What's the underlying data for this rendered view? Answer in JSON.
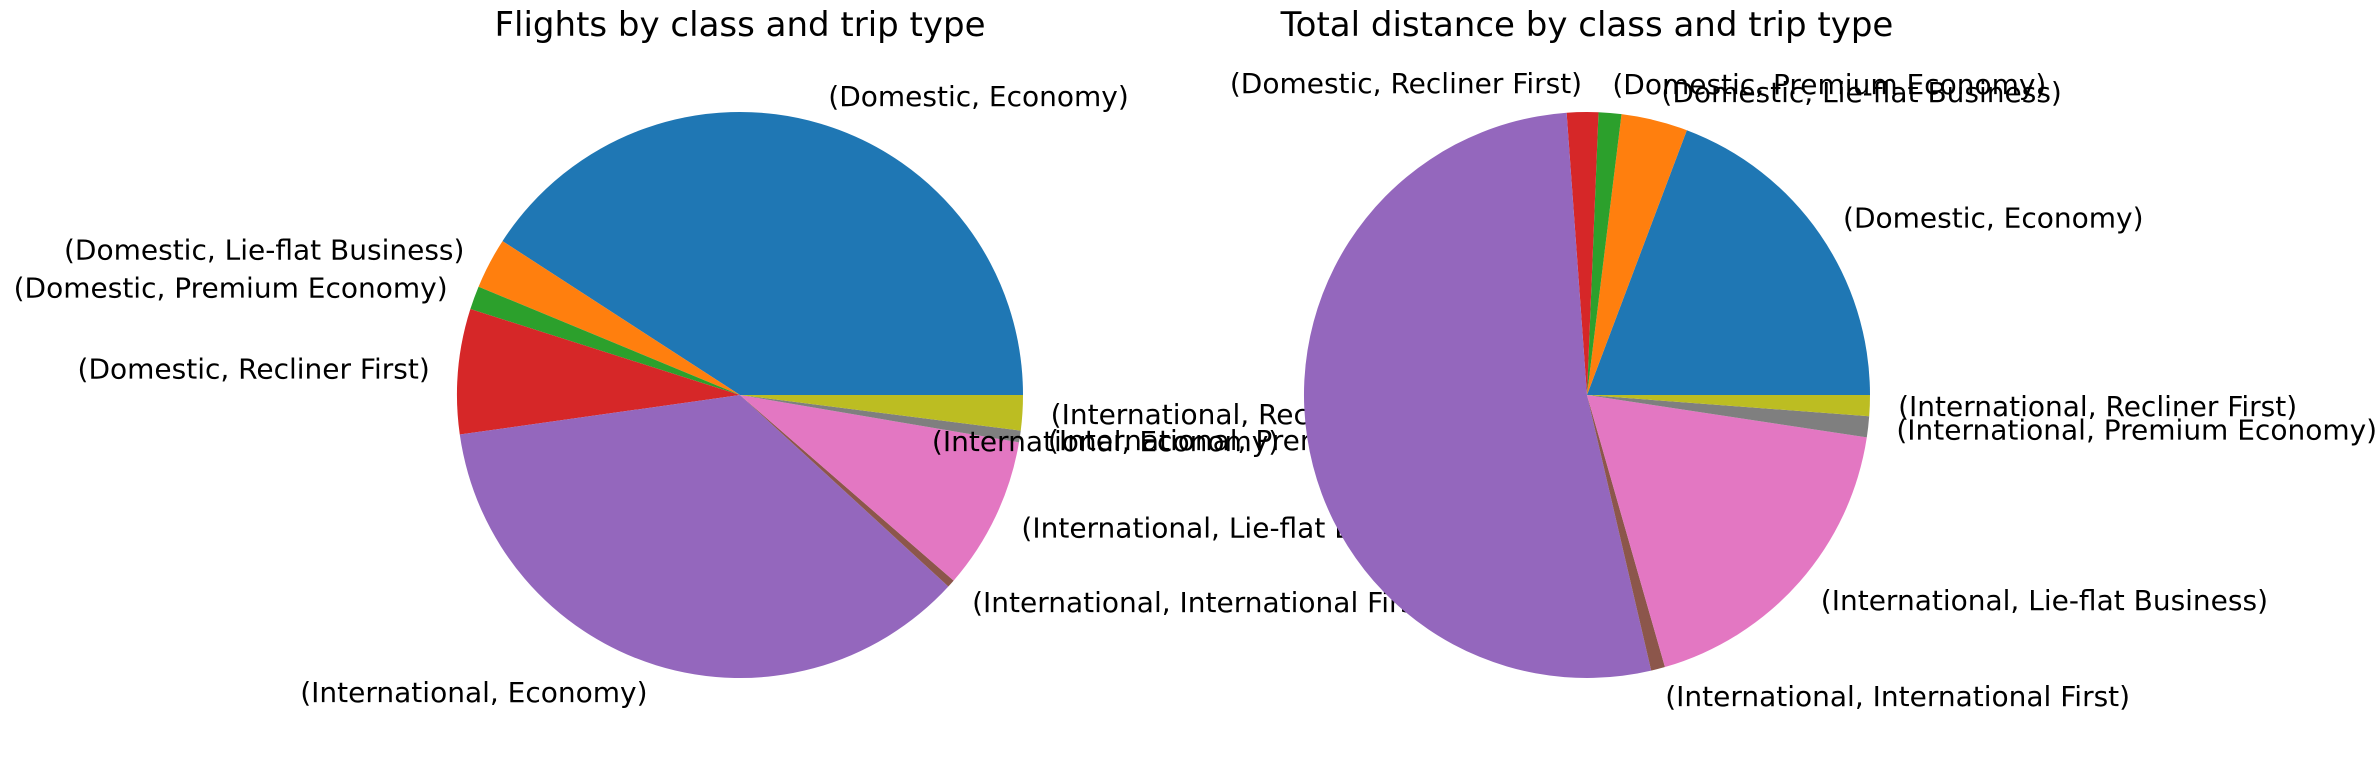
{
  "chart_data": [
    {
      "type": "pie",
      "title": "Flights by class and trip type",
      "slices": [
        {
          "label": "(Domestic, Economy)",
          "value": 183
        },
        {
          "label": "(Domestic, Lie-flat Business)",
          "value": 13
        },
        {
          "label": "(Domestic, Premium Economy)",
          "value": 6
        },
        {
          "label": "(Domestic, Recliner First)",
          "value": 32
        },
        {
          "label": "(International, Economy)",
          "value": 161
        },
        {
          "label": "(International, International First)",
          "value": 2
        },
        {
          "label": "(International, Lie-flat Business)",
          "value": 39
        },
        {
          "label": "(International, Premium Economy)",
          "value": 3
        },
        {
          "label": "(International, Recliner First)",
          "value": 9
        }
      ]
    },
    {
      "type": "pie",
      "title": "Total distance by class and trip type",
      "slices": [
        {
          "label": "(Domestic, Economy)",
          "value": 19.3
        },
        {
          "label": "(Domestic, Lie-flat Business)",
          "value": 3.8
        },
        {
          "label": "(Domestic, Premium Economy)",
          "value": 1.3
        },
        {
          "label": "(Domestic, Recliner First)",
          "value": 1.8
        },
        {
          "label": "(International, Economy)",
          "value": 52.6
        },
        {
          "label": "(International, International First)",
          "value": 0.8
        },
        {
          "label": "(International, Lie-flat Business)",
          "value": 18.2
        },
        {
          "label": "(International, Premium Economy)",
          "value": 1.2
        },
        {
          "label": "(International, Recliner First)",
          "value": 1.2
        }
      ]
    }
  ],
  "colors": [
    "#1f77b4",
    "#ff7f0e",
    "#2ca02c",
    "#d62728",
    "#9467bd",
    "#8c564b",
    "#e377c2",
    "#7f7f7f",
    "#bcbd22"
  ]
}
